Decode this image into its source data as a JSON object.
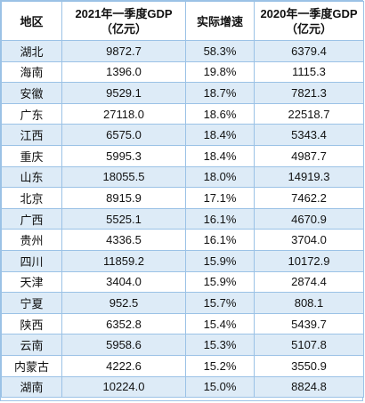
{
  "table": {
    "headers": {
      "region": "地区",
      "gdp2021_line1": "2021年一季度GDP",
      "gdp2021_line2": "（亿元）",
      "growth": "实际增速",
      "gdp2020_line1": "2020年一季度GDP",
      "gdp2020_line2": "（亿元）"
    },
    "rows": [
      {
        "region": "湖北",
        "gdp2021": "9872.7",
        "growth": "58.3%",
        "gdp2020": "6379.4"
      },
      {
        "region": "海南",
        "gdp2021": "1396.0",
        "growth": "19.8%",
        "gdp2020": "1115.3"
      },
      {
        "region": "安徽",
        "gdp2021": "9529.1",
        "growth": "18.7%",
        "gdp2020": "7821.3"
      },
      {
        "region": "广东",
        "gdp2021": "27118.0",
        "growth": "18.6%",
        "gdp2020": "22518.7"
      },
      {
        "region": "江西",
        "gdp2021": "6575.0",
        "growth": "18.4%",
        "gdp2020": "5343.4"
      },
      {
        "region": "重庆",
        "gdp2021": "5995.3",
        "growth": "18.4%",
        "gdp2020": "4987.7"
      },
      {
        "region": "山东",
        "gdp2021": "18055.5",
        "growth": "18.0%",
        "gdp2020": "14919.3"
      },
      {
        "region": "北京",
        "gdp2021": "8915.9",
        "growth": "17.1%",
        "gdp2020": "7462.2"
      },
      {
        "region": "广西",
        "gdp2021": "5525.1",
        "growth": "16.1%",
        "gdp2020": "4670.9"
      },
      {
        "region": "贵州",
        "gdp2021": "4336.5",
        "growth": "16.1%",
        "gdp2020": "3704.0"
      },
      {
        "region": "四川",
        "gdp2021": "11859.2",
        "growth": "15.9%",
        "gdp2020": "10172.9"
      },
      {
        "region": "天津",
        "gdp2021": "3404.0",
        "growth": "15.9%",
        "gdp2020": "2874.4"
      },
      {
        "region": "宁夏",
        "gdp2021": "952.5",
        "growth": "15.7%",
        "gdp2020": "808.1"
      },
      {
        "region": "陕西",
        "gdp2021": "6352.8",
        "growth": "15.4%",
        "gdp2020": "5439.7"
      },
      {
        "region": "云南",
        "gdp2021": "5958.6",
        "growth": "15.3%",
        "gdp2020": "5107.8"
      },
      {
        "region": "内蒙古",
        "gdp2021": "4222.6",
        "growth": "15.2%",
        "gdp2020": "3550.9"
      },
      {
        "region": "湖南",
        "gdp2021": "10224.0",
        "growth": "15.0%",
        "gdp2020": "8824.8"
      }
    ]
  },
  "colors": {
    "border": "#9bc2e6",
    "band": "#ddebf7",
    "background": "#ffffff"
  }
}
